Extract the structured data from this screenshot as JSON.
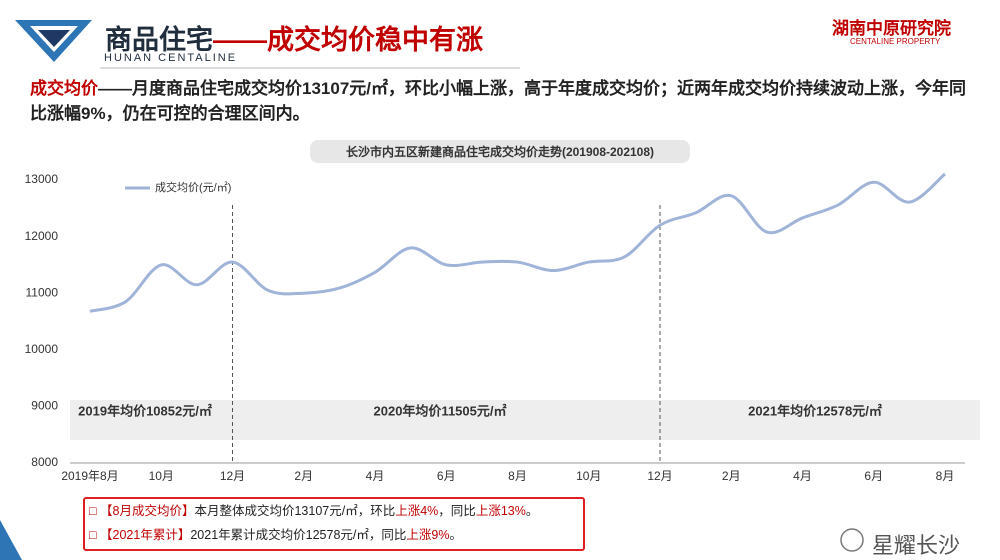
{
  "header": {
    "title": [
      {
        "text": "商品住宅",
        "color": "#1f2d3d"
      },
      {
        "text": "——成交均价稳中有涨",
        "color": "#c00000"
      }
    ],
    "subtitle": "HUNAN CENTALINE",
    "logo": "湖南中原研究院",
    "logo_sub": "CENTALINE PROPERTY"
  },
  "intro": [
    {
      "text": "成交均价",
      "color": "#c00000"
    },
    {
      "text": "——月度商品住宅成交均价13107元/㎡，环比小幅上涨，高于年度成交均价；近两年成交均价持续波动上涨，今年同比涨幅9%，仍在可控的合理区间内。",
      "color": "#222222"
    }
  ],
  "chart_data": {
    "type": "line",
    "title": "长沙市内五区新建商品住宅成交均价走势(201908-202108)",
    "categories": [
      "2019年8月",
      null,
      "10月",
      null,
      "12月",
      null,
      "2月",
      null,
      "4月",
      null,
      "6月",
      null,
      "8月",
      null,
      "10月",
      null,
      "12月",
      null,
      "2月",
      null,
      "4月",
      null,
      "6月",
      null,
      "8月"
    ],
    "series": [
      {
        "name": "成交均价(元/㎡)",
        "color": "#9fb4d8",
        "values": [
          10680,
          10850,
          11500,
          11150,
          11550,
          11050,
          11000,
          11090,
          11370,
          11800,
          11500,
          11550,
          11550,
          11400,
          11550,
          11640,
          12200,
          12420,
          12720,
          12080,
          12330,
          12560,
          12960,
          12610,
          13107
        ]
      }
    ],
    "ylim": [
      8000,
      13000
    ],
    "yticks": [
      8000,
      9000,
      10000,
      11000,
      12000,
      13000
    ],
    "grid": false,
    "legend": "upper left",
    "annotations": [
      "2019年均价10852元/㎡",
      "2020年均价11505元/㎡",
      "2021年均价12578元/㎡"
    ]
  },
  "summary": [
    [
      {
        "text": "□ 【8月成交均价】",
        "color": "#c00000"
      },
      {
        "text": "本月整体成交均价13107元/㎡，环比",
        "color": "#222222"
      },
      {
        "text": "上涨4%",
        "color": "#c00000"
      },
      {
        "text": "，同比",
        "color": "#222222"
      },
      {
        "text": "上涨13%",
        "color": "#c00000"
      },
      {
        "text": "。",
        "color": "#222222"
      }
    ],
    [
      {
        "text": "□ 【2021年累计】",
        "color": "#c00000"
      },
      {
        "text": "2021年累计成交均价12578元/㎡，同比",
        "color": "#222222"
      },
      {
        "text": "上涨9%",
        "color": "#c00000"
      },
      {
        "text": "。",
        "color": "#222222"
      }
    ]
  ],
  "watermark": "星耀长沙"
}
